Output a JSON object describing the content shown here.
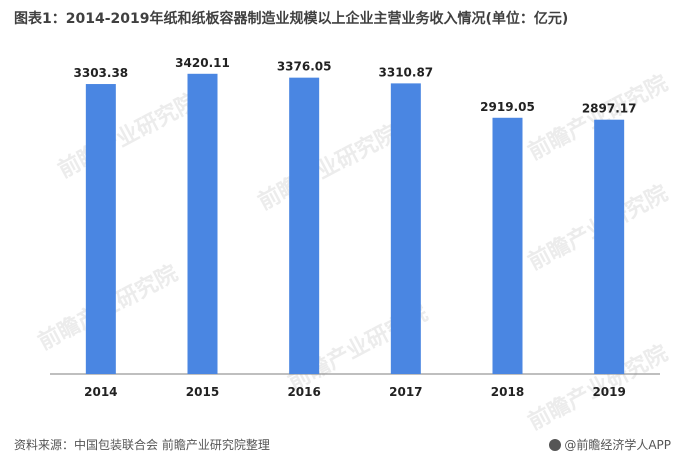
{
  "title": "图表1：2014-2019年纸和纸板容器制造业规模以上企业主营业务收入情况(单位：亿元)",
  "footer": {
    "source": "资料来源：中国包装联合会 前瞻产业研究院整理",
    "brand": "@前瞻经济学人APP"
  },
  "watermark": "前瞻产业研究院",
  "colors": {
    "bar": "#4A86E2",
    "axis": "#7f7f7f",
    "label": "#222222"
  },
  "chart_data": {
    "type": "bar",
    "categories": [
      "2014",
      "2015",
      "2016",
      "2017",
      "2018",
      "2019"
    ],
    "values": [
      3303.38,
      3420.11,
      3376.05,
      3310.87,
      2919.05,
      2897.17
    ],
    "value_labels": [
      "3303.38",
      "3420.11",
      "3376.05",
      "3310.87",
      "2919.05",
      "2897.17"
    ],
    "ylim": [
      0,
      3600
    ],
    "grid": false,
    "legend": "none"
  }
}
